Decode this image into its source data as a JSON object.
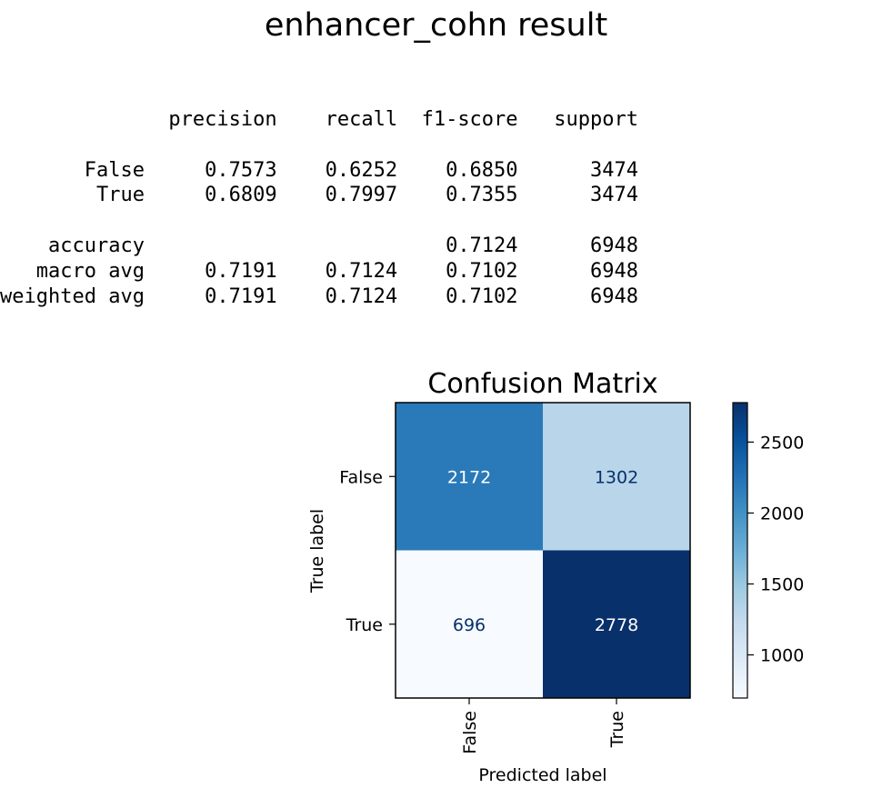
{
  "title": "enhancer_cohn result",
  "report": {
    "columns": [
      "precision",
      "recall",
      "f1-score",
      "support"
    ],
    "rows": [
      {
        "label": "False",
        "precision": "0.7573",
        "recall": "0.6252",
        "f1": "0.6850",
        "support": "3474"
      },
      {
        "label": "True",
        "precision": "0.6809",
        "recall": "0.7997",
        "f1": "0.7355",
        "support": "3474"
      },
      {
        "label": "",
        "precision": "",
        "recall": "",
        "f1": "",
        "support": ""
      },
      {
        "label": "accuracy",
        "precision": "",
        "recall": "",
        "f1": "0.7124",
        "support": "6948"
      },
      {
        "label": "macro avg",
        "precision": "0.7191",
        "recall": "0.7124",
        "f1": "0.7102",
        "support": "6948"
      },
      {
        "label": "weighted avg",
        "precision": "0.7191",
        "recall": "0.7124",
        "f1": "0.7102",
        "support": "6948"
      }
    ]
  },
  "chart_data": {
    "type": "heatmap",
    "title": "Confusion Matrix",
    "xlabel": "Predicted label",
    "ylabel": "True label",
    "x_categories": [
      "False",
      "True"
    ],
    "y_categories": [
      "False",
      "True"
    ],
    "matrix": [
      [
        2172,
        1302
      ],
      [
        696,
        2778
      ]
    ],
    "colormap": "Blues",
    "colorbar": {
      "ticks": [
        1000,
        1500,
        2000,
        2500
      ],
      "range": [
        696,
        2778
      ]
    },
    "colors": {
      "cell_false_false": "#2a7ab9",
      "cell_false_true": "#b8d5ea",
      "cell_true_false": "#f7fbff",
      "cell_true_true": "#08306b",
      "text_dark": "#08306b",
      "text_light": "#ffffff"
    }
  }
}
